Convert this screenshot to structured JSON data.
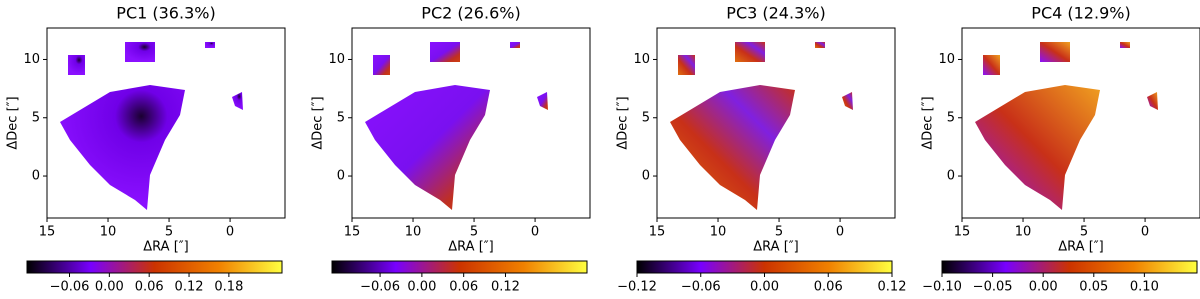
{
  "chart_data": [
    {
      "type": "heatmap",
      "title": "PC1 (36.3%)",
      "xlabel": "ΔRA [″]",
      "ylabel": "ΔDec [″]",
      "xlim": [
        15,
        -4.5
      ],
      "ylim": [
        -3.6,
        12.7
      ],
      "xticks": [
        15,
        10,
        5,
        0
      ],
      "yticks": [
        0,
        5,
        10
      ],
      "colormap": [
        "#000000",
        "#7800ff",
        "#cc3300",
        "#f08000",
        "#ffff40"
      ],
      "colorbar": {
        "clim": [
          -0.124,
          0.26
        ],
        "ticks": [
          {
            "value": -0.06,
            "label": "−0.06"
          },
          {
            "value": 0,
            "label": "0.00"
          },
          0.06,
          0.12,
          0.18
        ]
      }
    },
    {
      "type": "heatmap",
      "title": "PC2 (26.6%)",
      "xlabel": "ΔRA [″]",
      "ylabel": "ΔDec [″]",
      "xlim": [
        15,
        -4.5
      ],
      "ylim": [
        -3.6,
        12.7
      ],
      "xticks": [
        15,
        10,
        5,
        0
      ],
      "yticks": [
        0,
        5,
        10
      ],
      "colormap": [
        "#000000",
        "#7800ff",
        "#cc3300",
        "#f08000",
        "#ffff40"
      ],
      "colorbar": {
        "clim": [
          -0.129,
          0.237
        ],
        "ticks": [
          {
            "value": -0.06,
            "label": "−0.06"
          },
          {
            "value": 0,
            "label": "0.00"
          },
          0.06,
          0.12
        ]
      }
    },
    {
      "type": "heatmap",
      "title": "PC3 (24.3%)",
      "xlabel": "ΔRA [″]",
      "ylabel": "ΔDec [″]",
      "xlim": [
        15,
        -4.5
      ],
      "ylim": [
        -3.6,
        12.7
      ],
      "xticks": [
        15,
        10,
        5,
        0
      ],
      "yticks": [
        0,
        5,
        10
      ],
      "colormap": [
        "#000000",
        "#7800ff",
        "#cc3300",
        "#f08000",
        "#ffff40"
      ],
      "colorbar": {
        "clim": [
          -0.12,
          0.12
        ],
        "ticks": [
          {
            "value": -0.12,
            "label": "−0.12"
          },
          {
            "value": -0.06,
            "label": "−0.06"
          },
          {
            "value": 0,
            "label": "0.00"
          },
          0.06,
          0.12
        ]
      }
    },
    {
      "type": "heatmap",
      "title": "PC4 (12.9%)",
      "xlabel": "ΔRA [″]",
      "ylabel": "ΔDec [″]",
      "xlim": [
        15,
        -4.5
      ],
      "ylim": [
        -3.6,
        12.7
      ],
      "xticks": [
        15,
        10,
        5,
        0
      ],
      "yticks": [
        0,
        5,
        10
      ],
      "colormap": [
        "#000000",
        "#7800ff",
        "#cc3300",
        "#f08000",
        "#ffff40"
      ],
      "colorbar": {
        "clim": [
          -0.1,
          0.152
        ],
        "ticks": [
          {
            "value": -0.1,
            "label": "−0.10"
          },
          {
            "value": -0.05,
            "label": "−0.05"
          },
          {
            "value": 0,
            "label": "0.00"
          },
          0.05,
          {
            "value": 0.1,
            "label": "0.10"
          }
        ]
      }
    }
  ]
}
